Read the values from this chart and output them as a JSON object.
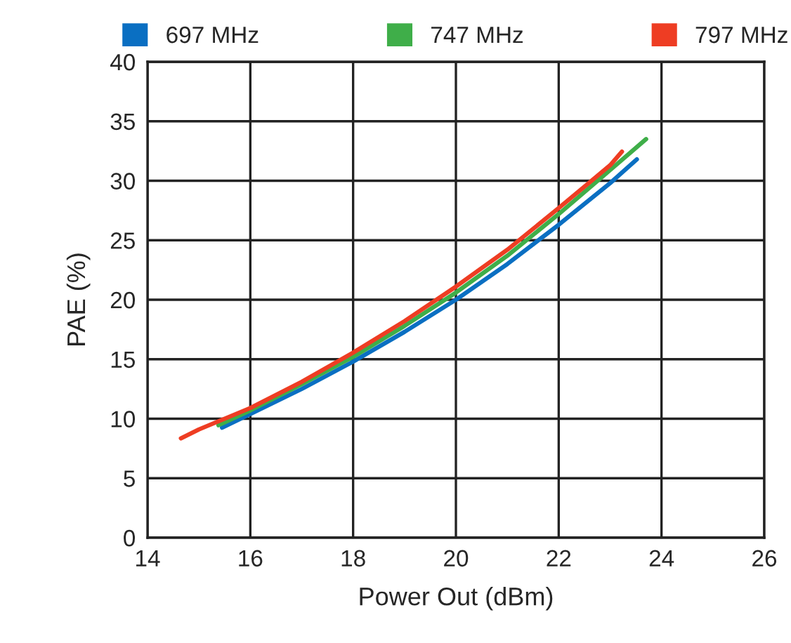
{
  "chart_data": {
    "type": "line",
    "xlabel": "Power Out (dBm)",
    "ylabel": "PAE (%)",
    "xlim": [
      14,
      26
    ],
    "xticks": [
      14,
      16,
      18,
      20,
      22,
      24,
      26
    ],
    "ylim": [
      0,
      40
    ],
    "yticks": [
      0,
      5,
      10,
      15,
      20,
      25,
      30,
      35,
      40
    ],
    "grid": true,
    "legend": "top",
    "marker": "none",
    "line_style": "solid",
    "series": [
      {
        "name": "697 MHz",
        "color": "#0a6fc2",
        "x": [
          15.45,
          16,
          17,
          18,
          19,
          20,
          21,
          22,
          23,
          23.52
        ],
        "values": [
          9.25,
          10.4,
          12.5,
          14.8,
          17.3,
          20.0,
          23.0,
          26.3,
          29.8,
          31.8
        ]
      },
      {
        "name": "747 MHz",
        "color": "#3fae49",
        "x": [
          15.38,
          16,
          17,
          18,
          19,
          20,
          21,
          22,
          23,
          23.7
        ],
        "values": [
          9.45,
          10.7,
          12.9,
          15.2,
          17.8,
          20.6,
          23.7,
          27.2,
          30.9,
          33.5
        ]
      },
      {
        "name": "797 MHz",
        "color": "#ee3d23",
        "x": [
          14.65,
          15,
          16,
          17,
          18,
          19,
          20,
          21,
          22,
          23,
          23.23
        ],
        "values": [
          8.35,
          9.1,
          10.9,
          13.1,
          15.55,
          18.2,
          21.1,
          24.2,
          27.7,
          31.3,
          32.45
        ]
      }
    ]
  }
}
